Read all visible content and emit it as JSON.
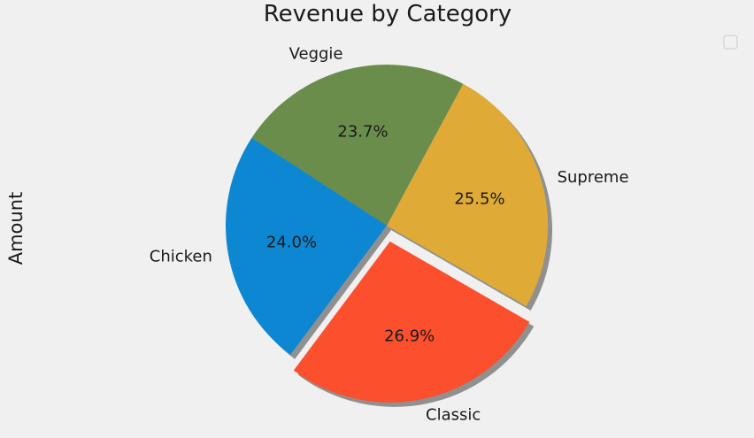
{
  "chart_data": {
    "type": "pie",
    "title": "Revenue by Category",
    "ylabel": "Amount",
    "categories": [
      "Supreme",
      "Veggie",
      "Chicken",
      "Classic"
    ],
    "values": [
      25.5,
      23.7,
      24.0,
      26.9
    ],
    "percent_labels": [
      "25.5%",
      "23.7%",
      "24.0%",
      "26.9%"
    ],
    "colors": [
      "#e0aa37",
      "#6a8d4c",
      "#0d87d2",
      "#fb4f2d"
    ],
    "explode": [
      0,
      0,
      0,
      0.1
    ],
    "start_angle_deg": -30,
    "shadow": true,
    "legend": "top-right",
    "legend_entries": []
  }
}
